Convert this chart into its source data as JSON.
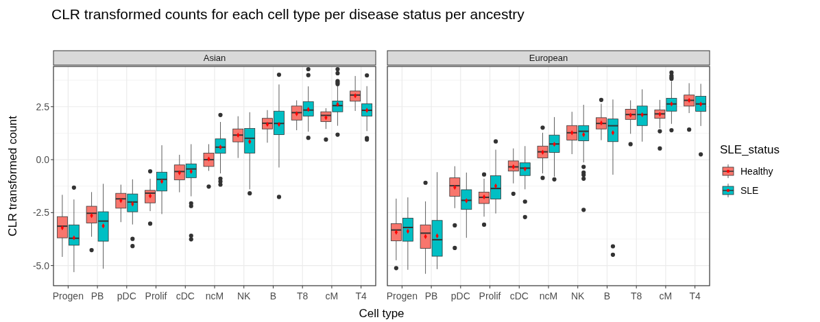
{
  "chart_data": [
    {
      "type": "box",
      "title": "CLR transformed counts for each cell type per disease status per ancestry",
      "subtitle": "Asian",
      "xlabel": "Cell type",
      "ylabel": "CLR transformed count",
      "categories": [
        "Progen",
        "PB",
        "pDC",
        "Prolif",
        "cDC",
        "ncM",
        "NK",
        "B",
        "T8",
        "cM",
        "T4"
      ],
      "ylim": [
        -5.95,
        4.4
      ],
      "yticks": [
        {
          "value": -5,
          "label": "-5.0"
        },
        {
          "value": -2.5,
          "label": "-2.5"
        },
        {
          "value": 0,
          "label": "0.0"
        },
        {
          "value": 2.5,
          "label": "2.5"
        }
      ],
      "grid": true,
      "series": [
        {
          "color": "#f8766d",
          "boxes": [
            {
              "low": -4.59,
              "q1": -3.69,
              "median": -3.14,
              "q3": -2.69,
              "high": -1.66,
              "mean": -3.22
            },
            {
              "low": -3.64,
              "q1": -2.99,
              "median": -2.53,
              "q3": -2.2,
              "high": -1.53,
              "mean": -2.64,
              "outliers": [
                -4.27
              ]
            },
            {
              "low": -2.95,
              "q1": -2.29,
              "median": -1.85,
              "q3": -1.59,
              "high": -1.18,
              "mean": -1.93
            },
            {
              "low": -2.43,
              "q1": -2.04,
              "median": -1.58,
              "q3": -1.45,
              "high": -0.9,
              "mean": -1.71,
              "outliers": [
                -0.55,
                -3.02
              ]
            },
            {
              "low": -1.54,
              "q1": -0.95,
              "median": -0.56,
              "q3": -0.25,
              "high": 0.23,
              "mean": -0.62
            },
            {
              "low": -0.53,
              "q1": -0.32,
              "median": 0,
              "q3": 0.31,
              "high": 0.73,
              "mean": 0.03,
              "outliers": [
                -1.27
              ]
            },
            {
              "low": 0.08,
              "q1": 0.84,
              "median": 1.16,
              "q3": 1.45,
              "high": 2.05,
              "mean": 1.16
            },
            {
              "low": 0.8,
              "q1": 1.45,
              "median": 1.72,
              "q3": 1.95,
              "high": 2.34,
              "mean": 1.67
            },
            {
              "low": 1.39,
              "q1": 1.87,
              "median": 2.22,
              "q3": 2.53,
              "high": 2.8,
              "mean": 2.17
            },
            {
              "low": 1.45,
              "q1": 1.8,
              "median": 2.09,
              "q3": 2.26,
              "high": 2.43,
              "mean": 1.98,
              "outliers": [
                0.95
              ]
            },
            {
              "low": 2.3,
              "q1": 2.76,
              "median": 3.05,
              "q3": 3.24,
              "high": 3.95,
              "mean": 3.02
            }
          ]
        },
        {
          "color": "#00bfc4",
          "boxes": [
            {
              "low": -5.31,
              "q1": -4.04,
              "median": -3.71,
              "q3": -3.08,
              "high": -1.88,
              "mean": -3.69,
              "outliers": [
                -1.32
              ]
            },
            {
              "low": -5.15,
              "q1": -3.85,
              "median": -2.9,
              "q3": -2.46,
              "high": -1.14,
              "mean": -3.13
            },
            {
              "low": -3.06,
              "q1": -2.46,
              "median": -2.0,
              "q3": -1.62,
              "high": -0.93,
              "mean": -2.09,
              "outliers": [
                -3.74,
                -4.08
              ]
            },
            {
              "low": -2.57,
              "q1": -1.48,
              "median": -0.93,
              "q3": -0.59,
              "high": 0.68,
              "mean": -1.03
            },
            {
              "low": -1.73,
              "q1": -0.85,
              "median": -0.44,
              "q3": -0.2,
              "high": 0.73,
              "mean": -0.56,
              "outliers": [
                -2.06,
                -2.19,
                -3.59,
                -3.76
              ]
            },
            {
              "low": -0.65,
              "q1": 0.3,
              "median": 0.59,
              "q3": 0.98,
              "high": 1.78,
              "mean": 0.59,
              "outliers": [
                2.11,
                -0.9,
                -1.03,
                -1.18
              ]
            },
            {
              "low": -1.4,
              "q1": 0.31,
              "median": 1.01,
              "q3": 1.47,
              "high": 2.24,
              "mean": 0.85,
              "outliers": [
                -1.59
              ]
            },
            {
              "low": -0.37,
              "q1": 1.18,
              "median": 1.71,
              "q3": 2.29,
              "high": 3.55,
              "mean": 1.67,
              "outliers": [
                4.01,
                -1.76
              ]
            },
            {
              "low": 1.32,
              "q1": 2.06,
              "median": 2.34,
              "q3": 2.74,
              "high": 3.46,
              "mean": 2.37,
              "outliers": [
                4.27,
                3.99,
                1.03
              ]
            },
            {
              "low": 1.6,
              "q1": 2.26,
              "median": 2.55,
              "q3": 2.77,
              "high": 3.5,
              "mean": 2.61,
              "outliers": [
                4.27,
                4.08,
                3.71,
                3.64,
                3.57,
                1.18
              ]
            },
            {
              "low": 1.35,
              "q1": 2.06,
              "median": 2.33,
              "q3": 2.64,
              "high": 3.47,
              "mean": 2.33,
              "outliers": [
                3.98,
                1.02,
                0.95
              ]
            }
          ]
        }
      ]
    },
    {
      "type": "box",
      "subtitle": "European",
      "categories": [
        "Progen",
        "PB",
        "pDC",
        "Prolif",
        "cDC",
        "ncM",
        "NK",
        "B",
        "T8",
        "cM",
        "T4"
      ],
      "ylim": [
        -5.95,
        4.4
      ],
      "yticks": [
        -5,
        -2.5,
        0,
        2.5
      ],
      "grid": true,
      "tick_labels": "x",
      "legend": "right",
      "legend_title": "SLE_status",
      "series": [
        {
          "name": "Healthy",
          "color": "#f8766d",
          "boxes": [
            {
              "low": -4.75,
              "q1": -3.83,
              "median": -3.32,
              "q3": -3.02,
              "high": -1.84,
              "mean": -3.43,
              "outliers": [
                -5.12
              ]
            },
            {
              "low": -5.39,
              "q1": -4.19,
              "median": -3.47,
              "q3": -3.08,
              "high": -1.97,
              "mean": -3.63,
              "outliers": [
                -1.09
              ]
            },
            {
              "low": -2.29,
              "q1": -1.73,
              "median": -1.23,
              "q3": -0.86,
              "high": -0.31,
              "mean": -1.31,
              "outliers": [
                -3.1,
                -4.17
              ]
            },
            {
              "low": -2.69,
              "q1": -2.07,
              "median": -1.78,
              "q3": -1.53,
              "high": -0.9,
              "mean": -1.76,
              "outliers": [
                -0.7,
                -3.07
              ]
            },
            {
              "low": -1.12,
              "q1": -0.54,
              "median": -0.34,
              "q3": -0.06,
              "high": 0.53,
              "mean": -0.34,
              "outliers": [
                -1.61
              ]
            },
            {
              "low": -0.65,
              "q1": 0.08,
              "median": 0.37,
              "q3": 0.64,
              "high": 1.27,
              "mean": 0.35,
              "outliers": [
                1.51,
                -0.86
              ]
            },
            {
              "low": 0.26,
              "q1": 0.92,
              "median": 1.27,
              "q3": 1.61,
              "high": 2.26,
              "mean": 1.27
            },
            {
              "low": 0.92,
              "q1": 1.45,
              "median": 1.71,
              "q3": 1.98,
              "high": 2.64,
              "mean": 1.73,
              "outliers": [
                2.82
              ]
            },
            {
              "low": 1.22,
              "q1": 1.9,
              "median": 2.13,
              "q3": 2.38,
              "high": 2.8,
              "mean": 2.1,
              "outliers": [
                0.73
              ]
            },
            {
              "low": 1.48,
              "q1": 1.95,
              "median": 2.16,
              "q3": 2.35,
              "high": 2.82,
              "mean": 2.14,
              "outliers": [
                1.34,
                0.53
              ]
            },
            {
              "low": 2.2,
              "q1": 2.53,
              "median": 2.8,
              "q3": 3.05,
              "high": 3.61,
              "mean": 2.8,
              "outliers": [
                1.42
              ]
            }
          ]
        },
        {
          "name": "SLE",
          "color": "#00bfc4",
          "boxes": [
            {
              "low": -5.2,
              "q1": -3.85,
              "median": -3.2,
              "q3": -2.76,
              "high": -1.78,
              "mean": -3.38
            },
            {
              "low": -5.17,
              "q1": -4.56,
              "median": -3.78,
              "q3": -2.87,
              "high": -0.59,
              "mean": -3.6
            },
            {
              "low": -3.69,
              "q1": -2.35,
              "median": -1.92,
              "q3": -1.42,
              "high": -0.61,
              "mean": -1.94
            },
            {
              "low": -2.54,
              "q1": -1.86,
              "median": -1.36,
              "q3": -0.76,
              "high": 0.47,
              "mean": -1.24,
              "outliers": [
                0.86
              ]
            },
            {
              "low": -1.4,
              "q1": -0.75,
              "median": -0.4,
              "q3": -0.15,
              "high": 0.64,
              "mean": -0.44,
              "outliers": [
                -1.98,
                -2.71
              ]
            },
            {
              "low": -0.8,
              "q1": 0.34,
              "median": 0.74,
              "q3": 1.16,
              "high": 2.01,
              "mean": 0.73,
              "outliers": [
                -0.93
              ]
            },
            {
              "low": -0.13,
              "q1": 0.89,
              "median": 1.34,
              "q3": 1.61,
              "high": 2.59,
              "mean": 1.18,
              "outliers": [
                -0.34,
                -0.61,
                -0.72,
                -0.9,
                -2.37
              ]
            },
            {
              "low": -0.71,
              "q1": 0.85,
              "median": 1.6,
              "q3": 1.92,
              "high": 2.84,
              "mean": 1.27,
              "outliers": [
                -4.09,
                -4.49
              ]
            },
            {
              "low": 0.85,
              "q1": 1.61,
              "median": 2.13,
              "q3": 2.53,
              "high": 3.32,
              "mean": 2.12
            },
            {
              "low": 1.69,
              "q1": 2.29,
              "median": 2.63,
              "q3": 2.9,
              "high": 3.71,
              "mean": 2.63,
              "outliers": [
                4.11,
                3.96,
                3.88,
                3.82,
                1.39
              ]
            },
            {
              "low": 1.59,
              "q1": 2.28,
              "median": 2.63,
              "q3": 2.99,
              "high": 3.58,
              "mean": 2.62,
              "outliers": [
                0.25
              ]
            }
          ]
        }
      ]
    }
  ]
}
